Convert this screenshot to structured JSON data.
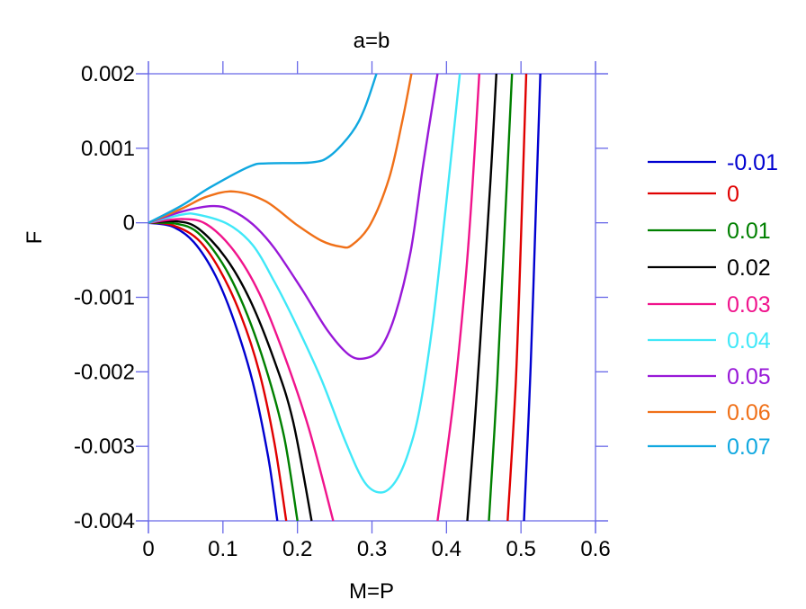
{
  "chart_data": {
    "type": "line",
    "title": "a=b",
    "xlabel": "M=P",
    "ylabel": "F",
    "xlim": [
      0,
      0.6
    ],
    "ylim": [
      -0.004,
      0.002
    ],
    "xticks": [
      "0",
      "0.1",
      "0.2",
      "0.3",
      "0.4",
      "0.5",
      "0.6"
    ],
    "xtick_values": [
      0,
      0.1,
      0.2,
      0.3,
      0.4,
      0.5,
      0.6
    ],
    "yticks": [
      "0.002",
      "0.001",
      "0",
      "-0.001",
      "-0.002",
      "-0.003",
      "-0.004"
    ],
    "ytick_values": [
      0.002,
      0.001,
      0,
      -0.001,
      -0.002,
      -0.003,
      -0.004
    ],
    "grid": false,
    "legend_placement": "right",
    "axis_color": "#6868e8",
    "series": [
      {
        "name": "-0.01",
        "color": "#0000d0",
        "segments": [
          [
            [
              0,
              0
            ],
            [
              0.032,
              -5e-05
            ],
            [
              0.061,
              -0.00026
            ],
            [
              0.09,
              -0.00071
            ],
            [
              0.115,
              -0.00132
            ],
            [
              0.14,
              -0.00214
            ],
            [
              0.161,
              -0.00316
            ],
            [
              0.173,
              -0.004
            ]
          ],
          [
            [
              0.504,
              -0.004
            ],
            [
              0.513,
              -0.00193
            ],
            [
              0.521,
              0.00051
            ],
            [
              0.526,
              0.002
            ]
          ]
        ]
      },
      {
        "name": "0",
        "color": "#e00000",
        "segments": [
          [
            [
              0,
              0
            ],
            [
              0.032,
              -3e-05
            ],
            [
              0.066,
              -0.00022
            ],
            [
              0.095,
              -0.00062
            ],
            [
              0.124,
              -0.00124
            ],
            [
              0.149,
              -0.00201
            ],
            [
              0.169,
              -0.00295
            ],
            [
              0.185,
              -0.004
            ]
          ],
          [
            [
              0.482,
              -0.004
            ],
            [
              0.493,
              -0.00214
            ],
            [
              0.501,
              0.00011
            ],
            [
              0.507,
              0.002
            ]
          ]
        ]
      },
      {
        "name": "0.01",
        "color": "#008000",
        "segments": [
          [
            [
              0,
              0
            ],
            [
              0.036,
              -1e-05
            ],
            [
              0.066,
              -0.00013
            ],
            [
              0.099,
              -0.00054
            ],
            [
              0.128,
              -0.00112
            ],
            [
              0.157,
              -0.00193
            ],
            [
              0.182,
              -0.00287
            ],
            [
              0.2,
              -0.004
            ]
          ],
          [
            [
              0.457,
              -0.004
            ],
            [
              0.468,
              -0.00214
            ],
            [
              0.478,
              -0.0001
            ],
            [
              0.488,
              0.002
            ]
          ]
        ]
      },
      {
        "name": "0.02",
        "color": "#000000",
        "segments": [
          [
            [
              0,
              0
            ],
            [
              0.0365,
              2e-05
            ],
            [
              0.066,
              -7e-05
            ],
            [
              0.103,
              -0.00046
            ],
            [
              0.136,
              -0.00103
            ],
            [
              0.169,
              -0.00185
            ],
            [
              0.194,
              -0.00266
            ],
            [
              0.219,
              -0.004
            ]
          ],
          [
            [
              0.428,
              -0.004
            ],
            [
              0.439,
              -0.00254
            ],
            [
              0.451,
              -0.00071
            ],
            [
              0.46,
              0.00072
            ],
            [
              0.467,
              0.002
            ]
          ]
        ]
      },
      {
        "name": "0.03",
        "color": "#f0148c",
        "segments": [
          [
            [
              0,
              0
            ],
            [
              0.045,
              5e-05
            ],
            [
              0.078,
              -2e-05
            ],
            [
              0.115,
              -0.00038
            ],
            [
              0.149,
              -0.00095
            ],
            [
              0.182,
              -0.00177
            ],
            [
              0.215,
              -0.00275
            ],
            [
              0.248,
              -0.004
            ]
          ],
          [
            [
              0.388,
              -0.004
            ],
            [
              0.41,
              -0.00234
            ],
            [
              0.426,
              -0.00071
            ],
            [
              0.435,
              0.00051
            ],
            [
              0.444,
              0.002
            ]
          ]
        ]
      },
      {
        "name": "0.04",
        "color": "#40e8f8",
        "segments": [
          [
            [
              0,
              0
            ],
            [
              0.045,
              0.00011
            ],
            [
              0.066,
              0.00011
            ],
            [
              0.107,
              -2e-05
            ],
            [
              0.14,
              -0.0003
            ],
            [
              0.169,
              -0.00079
            ],
            [
              0.198,
              -0.00136
            ],
            [
              0.232,
              -0.0021
            ],
            [
              0.265,
              -0.00295
            ],
            [
              0.29,
              -0.00348
            ],
            [
              0.312,
              -0.00362
            ],
            [
              0.331,
              -0.00348
            ],
            [
              0.348,
              -0.00311
            ],
            [
              0.364,
              -0.0025
            ],
            [
              0.382,
              -0.00132
            ],
            [
              0.398,
              0.00011
            ],
            [
              0.411,
              0.00133
            ],
            [
              0.418,
              0.002
            ]
          ]
        ]
      },
      {
        "name": "0.05",
        "color": "#9818d8",
        "segments": [
          [
            [
              0,
              0
            ],
            [
              0.045,
              0.00015
            ],
            [
              0.086,
              0.000224
            ],
            [
              0.111,
              0.00017
            ],
            [
              0.14,
              -2e-05
            ],
            [
              0.169,
              -0.00034
            ],
            [
              0.207,
              -0.00091
            ],
            [
              0.24,
              -0.00144
            ],
            [
              0.269,
              -0.00177
            ],
            [
              0.29,
              -0.00182
            ],
            [
              0.311,
              -0.00169
            ],
            [
              0.331,
              -0.00124
            ],
            [
              0.352,
              -0.00038
            ],
            [
              0.369,
              0.0008
            ],
            [
              0.388,
              0.002
            ]
          ]
        ]
      },
      {
        "name": "0.06",
        "color": "#f07018",
        "segments": [
          [
            [
              0,
              0
            ],
            [
              0.0448,
              0.00019
            ],
            [
              0.078,
              0.00035
            ],
            [
              0.115,
              0.00042
            ],
            [
              0.157,
              0.00029
            ],
            [
              0.198,
              -2e-05
            ],
            [
              0.232,
              -0.00024
            ],
            [
              0.258,
              -0.00032
            ],
            [
              0.273,
              -0.0003
            ],
            [
              0.298,
              -2e-05
            ],
            [
              0.323,
              0.0006
            ],
            [
              0.34,
              0.00133
            ],
            [
              0.353,
              0.002
            ]
          ]
        ]
      },
      {
        "name": "0.07",
        "color": "#10a8e0",
        "segments": [
          [
            [
              0,
              0
            ],
            [
              0.0448,
              0.000232
            ],
            [
              0.082,
              0.00047
            ],
            [
              0.136,
              0.000757
            ],
            [
              0.161,
              0.000798
            ],
            [
              0.219,
              0.00081
            ],
            [
              0.244,
              0.0009
            ],
            [
              0.273,
              0.00121
            ],
            [
              0.29,
              0.00153
            ],
            [
              0.306,
              0.002
            ]
          ]
        ]
      }
    ]
  }
}
